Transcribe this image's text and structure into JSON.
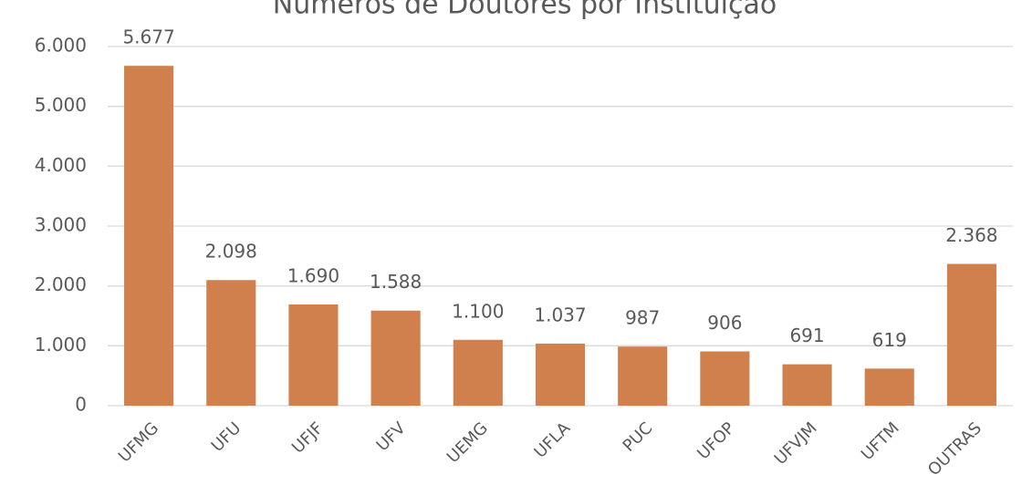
{
  "chart_data": {
    "type": "bar",
    "title": "Números de Doutores por Instituição",
    "categories": [
      "UFMG",
      "UFU",
      "UFJF",
      "UFV",
      "UEMG",
      "UFLA",
      "PUC",
      "UFOP",
      "UFVJM",
      "UFTM",
      "OUTRAS"
    ],
    "values": [
      5677,
      2098,
      1690,
      1588,
      1100,
      1037,
      987,
      906,
      691,
      619,
      2368
    ],
    "value_labels": [
      "5.677",
      "2.098",
      "1.690",
      "1.588",
      "1.100",
      "1.037",
      "987",
      "906",
      "691",
      "619",
      "2.368"
    ],
    "color": "#d0804d",
    "ylim": [
      0,
      6000
    ],
    "yticks": [
      0,
      {
        "value": 1000,
        "label": "1.000"
      },
      {
        "value": 2000,
        "label": "2.000"
      },
      {
        "value": 3000,
        "label": "3.000"
      },
      {
        "value": 4000,
        "label": "4.000"
      },
      {
        "value": 5000,
        "label": "5.000"
      },
      {
        "value": 6000,
        "label": "6.000"
      }
    ],
    "grid": true
  }
}
